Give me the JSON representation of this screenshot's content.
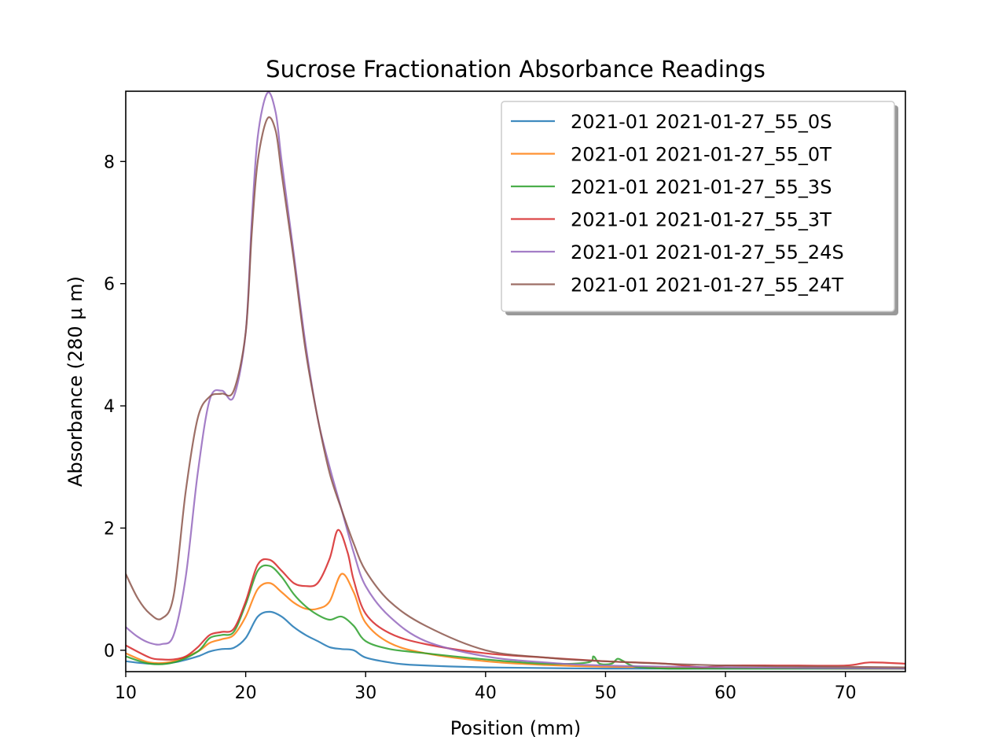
{
  "chart_data": {
    "type": "line",
    "title": "Sucrose Fractionation Absorbance Readings",
    "xlabel": "Position (mm)",
    "ylabel": "Absorbance (280 μ m)",
    "xlim": [
      10,
      75
    ],
    "ylim": [
      -0.35,
      9.15
    ],
    "xticks": [
      10,
      20,
      30,
      40,
      50,
      60,
      70
    ],
    "yticks": [
      0,
      2,
      4,
      6,
      8
    ],
    "grid": false,
    "legend_position": "top-right",
    "series": [
      {
        "name": "2021-01 2021-01-27_55_0S",
        "color": "#1f77b4",
        "x": [
          10,
          12,
          14,
          16,
          17,
          18,
          19,
          20,
          21,
          22,
          23,
          24,
          25,
          26,
          27,
          28,
          29,
          30,
          32,
          34,
          40,
          50,
          60,
          70,
          75
        ],
        "y": [
          -0.18,
          -0.22,
          -0.2,
          -0.1,
          -0.02,
          0.02,
          0.04,
          0.2,
          0.55,
          0.63,
          0.55,
          0.38,
          0.25,
          0.15,
          0.05,
          0.02,
          0.0,
          -0.12,
          -0.2,
          -0.24,
          -0.28,
          -0.3,
          -0.3,
          -0.3,
          -0.3
        ]
      },
      {
        "name": "2021-01 2021-01-27_55_0T",
        "color": "#ff7f0e",
        "x": [
          10,
          12,
          14,
          16,
          17,
          18,
          19,
          20,
          21,
          22,
          23,
          24,
          25,
          26,
          27,
          28,
          29,
          30,
          32,
          35,
          40,
          45,
          50,
          60,
          70,
          75
        ],
        "y": [
          -0.05,
          -0.2,
          -0.18,
          -0.02,
          0.12,
          0.18,
          0.25,
          0.55,
          1.0,
          1.1,
          0.95,
          0.78,
          0.68,
          0.68,
          0.8,
          1.25,
          0.95,
          0.45,
          0.12,
          -0.05,
          -0.18,
          -0.24,
          -0.27,
          -0.29,
          -0.3,
          -0.3
        ]
      },
      {
        "name": "2021-01 2021-01-27_55_3S",
        "color": "#2ca02c",
        "x": [
          10,
          12,
          14,
          16,
          17,
          18,
          19,
          20,
          21,
          22,
          23,
          24,
          25,
          26,
          27,
          28,
          29,
          30,
          32,
          35,
          40,
          45,
          48.5,
          49,
          49.5,
          50.5,
          51,
          51.5,
          52.5,
          55,
          60,
          70,
          75
        ],
        "y": [
          -0.1,
          -0.22,
          -0.2,
          -0.02,
          0.2,
          0.25,
          0.3,
          0.75,
          1.3,
          1.38,
          1.2,
          0.92,
          0.72,
          0.58,
          0.5,
          0.55,
          0.4,
          0.15,
          0.02,
          -0.05,
          -0.15,
          -0.22,
          -0.2,
          -0.1,
          -0.22,
          -0.22,
          -0.14,
          -0.18,
          -0.27,
          -0.3,
          -0.3,
          -0.3,
          -0.3
        ]
      },
      {
        "name": "2021-01 2021-01-27_55_3T",
        "color": "#d62728",
        "x": [
          10,
          12,
          13,
          14,
          15,
          16,
          17,
          18,
          19,
          20,
          21,
          22,
          23,
          24,
          25,
          26,
          27,
          27.7,
          28.5,
          29,
          30,
          32,
          35,
          40,
          45,
          50,
          55,
          58,
          60,
          65,
          70,
          72,
          75
        ],
        "y": [
          0.08,
          -0.12,
          -0.15,
          -0.15,
          -0.1,
          0.05,
          0.25,
          0.3,
          0.35,
          0.8,
          1.4,
          1.48,
          1.3,
          1.1,
          1.05,
          1.1,
          1.5,
          1.97,
          1.6,
          1.15,
          0.6,
          0.28,
          0.1,
          -0.05,
          -0.12,
          -0.18,
          -0.22,
          -0.28,
          -0.25,
          -0.25,
          -0.25,
          -0.2,
          -0.22
        ]
      },
      {
        "name": "2021-01 2021-01-27_55_24S",
        "color": "#9467bd",
        "x": [
          10,
          11,
          12,
          13,
          14,
          15,
          16,
          17,
          18,
          19,
          20,
          20.5,
          21,
          21.8,
          22.5,
          23,
          24,
          25,
          26,
          27,
          28,
          29,
          30,
          32,
          35,
          40,
          45,
          50,
          60,
          75
        ],
        "y": [
          0.38,
          0.22,
          0.12,
          0.1,
          0.25,
          1.2,
          2.9,
          4.1,
          4.25,
          4.15,
          5.2,
          7.0,
          8.4,
          9.12,
          8.8,
          8.0,
          6.5,
          5.0,
          3.8,
          3.0,
          2.3,
          1.6,
          1.05,
          0.55,
          0.15,
          -0.1,
          -0.2,
          -0.25,
          -0.28,
          -0.3
        ]
      },
      {
        "name": "2021-01 2021-01-27_55_24T",
        "color": "#8c564b",
        "x": [
          10,
          11,
          12,
          13,
          14,
          15,
          16,
          17,
          18,
          19,
          20,
          20.5,
          21,
          21.8,
          22.5,
          23,
          24,
          25,
          26,
          27,
          28,
          29,
          30,
          32,
          35,
          40,
          45,
          50,
          60,
          70,
          75
        ],
        "y": [
          1.25,
          0.85,
          0.6,
          0.52,
          0.9,
          2.6,
          3.8,
          4.15,
          4.2,
          4.25,
          5.2,
          6.8,
          8.0,
          8.7,
          8.5,
          7.8,
          6.4,
          4.9,
          3.8,
          2.9,
          2.3,
          1.75,
          1.3,
          0.8,
          0.4,
          0.0,
          -0.12,
          -0.18,
          -0.25,
          -0.27,
          -0.28
        ]
      }
    ]
  }
}
